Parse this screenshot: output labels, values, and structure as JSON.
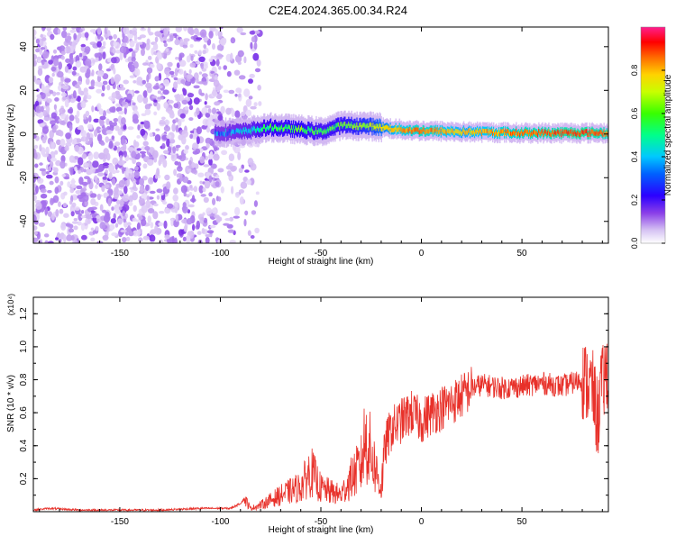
{
  "title": "C2E4.2024.365.00.34.R24",
  "chart_data": [
    {
      "type": "heatmap",
      "xlabel": "Height of straight line (km)",
      "ylabel": "Frequency (Hz)",
      "xlim": [
        -193,
        93
      ],
      "ylim": [
        -50,
        49
      ],
      "xticks": [
        -150,
        -100,
        -50,
        0,
        50
      ],
      "yticks": [
        -40,
        -20,
        0,
        20,
        40
      ],
      "colorbar": {
        "label": "Normalized spectral amplitude",
        "range": [
          0,
          1
        ],
        "ticks": [
          "0.0",
          "0.2",
          "0.4",
          "0.6",
          "0.8"
        ],
        "colors": [
          "#ffffff",
          "#c7a6f0",
          "#7a2ee6",
          "#2b00ff",
          "#00c8ff",
          "#00ff6a",
          "#b4ff00",
          "#ffd200",
          "#ff6a00",
          "#ff0000",
          "#ff1f8f"
        ]
      },
      "features": {
        "noise_region_x": [
          -193,
          -80
        ],
        "signal_band": [
          {
            "x": -103,
            "f": 0.5,
            "amp": 0.35
          },
          {
            "x": -90,
            "f": 1.0,
            "amp": 0.4
          },
          {
            "x": -75,
            "f": 3.0,
            "amp": 0.5
          },
          {
            "x": -60,
            "f": 2.0,
            "amp": 0.55
          },
          {
            "x": -50,
            "f": 1.0,
            "amp": 0.5
          },
          {
            "x": -40,
            "f": 4.0,
            "amp": 0.55
          },
          {
            "x": -25,
            "f": 3.5,
            "amp": 0.6
          },
          {
            "x": -10,
            "f": 2.0,
            "amp": 0.75
          },
          {
            "x": 0,
            "f": 1.5,
            "amp": 0.8
          },
          {
            "x": 20,
            "f": 1.0,
            "amp": 0.7
          },
          {
            "x": 50,
            "f": 0.5,
            "amp": 0.8
          },
          {
            "x": 80,
            "f": 0.5,
            "amp": 0.85
          },
          {
            "x": 93,
            "f": 0.5,
            "amp": 0.8
          }
        ]
      }
    },
    {
      "type": "line",
      "xlabel": "Height of straight line (km)",
      "ylabel": "SNR (10 * v/v)",
      "y_multiplier": "(x10⁴)",
      "xlim": [
        -193,
        93
      ],
      "ylim": [
        0,
        1.3
      ],
      "xticks": [
        -150,
        -100,
        -50,
        0,
        50
      ],
      "yticks": [
        "0.2",
        "0.4",
        "0.6",
        "0.8",
        "1.0",
        "1.2"
      ],
      "series": [
        {
          "color": "#e8312a",
          "x": [
            -193,
            -185,
            -170,
            -150,
            -130,
            -110,
            -95,
            -90,
            -88,
            -85,
            -80,
            -70,
            -60,
            -55,
            -50,
            -45,
            -40,
            -35,
            -30,
            -28,
            -25,
            -20,
            -18,
            -15,
            -10,
            -5,
            0,
            5,
            10,
            15,
            20,
            25,
            30,
            40,
            50,
            60,
            70,
            80,
            85,
            87,
            88,
            89,
            90,
            93
          ],
          "y": [
            0.01,
            0.02,
            0.01,
            0.01,
            0.01,
            0.02,
            0.02,
            0.05,
            0.08,
            0.02,
            0.04,
            0.1,
            0.15,
            0.25,
            0.14,
            0.12,
            0.1,
            0.2,
            0.28,
            0.45,
            0.35,
            0.14,
            0.4,
            0.5,
            0.55,
            0.6,
            0.55,
            0.6,
            0.63,
            0.66,
            0.7,
            0.75,
            0.77,
            0.75,
            0.76,
            0.78,
            0.76,
            0.8,
            0.75,
            0.6,
            0.55,
            0.8,
            0.75,
            0.9
          ]
        }
      ]
    }
  ]
}
